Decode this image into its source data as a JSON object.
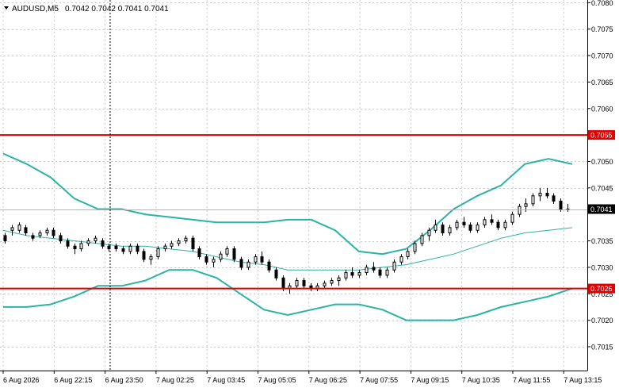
{
  "header": {
    "symbol": "AUDUSD,M5",
    "quotes": "0.7042 0.7042 0.7041 0.7041",
    "menu_icon": "triangle-down-icon"
  },
  "colors": {
    "background": "#ffffff",
    "grid": "#c8c8c8",
    "candle": "#000000",
    "bollinger": "#2ab3a6",
    "level_line": "#e00000",
    "level_tag_bg": "#e00000",
    "level_tag_text": "#ffffff",
    "price_tag_bg": "#000000",
    "price_tag_text": "#ffffff",
    "bid_line": "#b4b4b4",
    "axis": "#000000"
  },
  "chart_data": {
    "type": "candlestick",
    "symbol": "AUDUSD",
    "timeframe": "M5",
    "ylim": [
      0.70105,
      0.70805
    ],
    "y_ticks": [
      "0.7080",
      "0.7075",
      "0.7070",
      "0.7065",
      "0.7060",
      "0.7050",
      "0.7045",
      "0.7035",
      "0.7030",
      "0.7025",
      "0.7020",
      "0.7015"
    ],
    "y_tick_values": [
      0.708,
      0.7075,
      0.707,
      0.7065,
      0.706,
      0.705,
      0.7045,
      0.7035,
      0.703,
      0.7025,
      0.702,
      0.7015
    ],
    "x_ticks": [
      "6 Aug 2026",
      "6 Aug 22:15",
      "6 Aug 23:50",
      "7 Aug 02:25",
      "7 Aug 03:45",
      "7 Aug 05:05",
      "7 Aug 06:25",
      "7 Aug 07:55",
      "7 Aug 09:15",
      "7 Aug 10:35",
      "7 Aug 11:55",
      "7 Aug 13:15"
    ],
    "horizontal_levels": [
      {
        "label": "0.7055",
        "value": 0.7055
      },
      {
        "label": "0.7026",
        "value": 0.7026
      }
    ],
    "current_price": {
      "label": "0.7041",
      "value": 0.7041
    },
    "bollinger_bands": {
      "upper": [
        0.70515,
        0.70495,
        0.7047,
        0.7043,
        0.7041,
        0.7041,
        0.704,
        0.70395,
        0.7039,
        0.70385,
        0.70385,
        0.70385,
        0.7039,
        0.7039,
        0.7037,
        0.7033,
        0.70325,
        0.70335,
        0.7037,
        0.7041,
        0.70435,
        0.70455,
        0.70495,
        0.70505,
        0.70495
      ],
      "middle": [
        0.7037,
        0.7036,
        0.70355,
        0.7035,
        0.70345,
        0.7034,
        0.7034,
        0.70335,
        0.7033,
        0.7032,
        0.7031,
        0.70305,
        0.70295,
        0.70295,
        0.70295,
        0.70295,
        0.703,
        0.70305,
        0.70315,
        0.70325,
        0.7034,
        0.70355,
        0.70365,
        0.7037,
        0.70375
      ],
      "lower": [
        0.70225,
        0.70225,
        0.7023,
        0.70245,
        0.70265,
        0.70265,
        0.70275,
        0.70295,
        0.70295,
        0.7028,
        0.7025,
        0.7022,
        0.7021,
        0.7022,
        0.7023,
        0.7023,
        0.7022,
        0.702,
        0.702,
        0.702,
        0.7021,
        0.70225,
        0.70235,
        0.70245,
        0.7026
      ]
    },
    "candles": [
      [
        0.7036,
        0.70365,
        0.70345,
        0.7035
      ],
      [
        0.7037,
        0.7038,
        0.7036,
        0.70375
      ],
      [
        0.7037,
        0.70385,
        0.70365,
        0.7038
      ],
      [
        0.70375,
        0.7038,
        0.7036,
        0.70365
      ],
      [
        0.7036,
        0.70365,
        0.7035,
        0.70355
      ],
      [
        0.7036,
        0.7037,
        0.70355,
        0.70365
      ],
      [
        0.70365,
        0.70375,
        0.7036,
        0.7037
      ],
      [
        0.7037,
        0.70375,
        0.70355,
        0.7036
      ],
      [
        0.7036,
        0.70365,
        0.70345,
        0.7035
      ],
      [
        0.7035,
        0.70355,
        0.70335,
        0.7034
      ],
      [
        0.7034,
        0.70345,
        0.70325,
        0.70335
      ],
      [
        0.70335,
        0.7035,
        0.7033,
        0.70345
      ],
      [
        0.70345,
        0.70355,
        0.7034,
        0.7035
      ],
      [
        0.7035,
        0.7036,
        0.70345,
        0.70355
      ],
      [
        0.7035,
        0.70355,
        0.70335,
        0.7034
      ],
      [
        0.7034,
        0.70345,
        0.7033,
        0.70335
      ],
      [
        0.7034,
        0.70345,
        0.7033,
        0.70335
      ],
      [
        0.70335,
        0.7034,
        0.70325,
        0.7033
      ],
      [
        0.7033,
        0.70345,
        0.70325,
        0.7034
      ],
      [
        0.7034,
        0.70345,
        0.70325,
        0.7033
      ],
      [
        0.7033,
        0.70335,
        0.7031,
        0.70315
      ],
      [
        0.70315,
        0.70325,
        0.70305,
        0.7032
      ],
      [
        0.7032,
        0.7034,
        0.70315,
        0.70335
      ],
      [
        0.70335,
        0.70345,
        0.7033,
        0.7034
      ],
      [
        0.7034,
        0.7035,
        0.70335,
        0.70345
      ],
      [
        0.70345,
        0.70355,
        0.7034,
        0.7035
      ],
      [
        0.7035,
        0.7036,
        0.70345,
        0.70355
      ],
      [
        0.70355,
        0.7036,
        0.7033,
        0.70335
      ],
      [
        0.70335,
        0.7034,
        0.70315,
        0.7032
      ],
      [
        0.7032,
        0.70325,
        0.70305,
        0.7031
      ],
      [
        0.7031,
        0.7032,
        0.703,
        0.70315
      ],
      [
        0.70315,
        0.7033,
        0.7031,
        0.70325
      ],
      [
        0.70325,
        0.7034,
        0.7032,
        0.70335
      ],
      [
        0.70335,
        0.7034,
        0.7031,
        0.70315
      ],
      [
        0.70315,
        0.7032,
        0.70295,
        0.703
      ],
      [
        0.703,
        0.70315,
        0.70295,
        0.7031
      ],
      [
        0.7031,
        0.70325,
        0.70305,
        0.7032
      ],
      [
        0.7032,
        0.7033,
        0.70305,
        0.7031
      ],
      [
        0.7031,
        0.70315,
        0.7029,
        0.70295
      ],
      [
        0.70295,
        0.703,
        0.70275,
        0.7028
      ],
      [
        0.7028,
        0.70285,
        0.70255,
        0.7026
      ],
      [
        0.7026,
        0.7027,
        0.7025,
        0.70265
      ],
      [
        0.70265,
        0.7028,
        0.7026,
        0.70275
      ],
      [
        0.70275,
        0.7028,
        0.7026,
        0.70265
      ],
      [
        0.70265,
        0.7027,
        0.70255,
        0.7026
      ],
      [
        0.7026,
        0.7027,
        0.70255,
        0.70265
      ],
      [
        0.70265,
        0.70275,
        0.7026,
        0.7027
      ],
      [
        0.7027,
        0.7028,
        0.70265,
        0.70275
      ],
      [
        0.70275,
        0.70285,
        0.70265,
        0.7028
      ],
      [
        0.7028,
        0.70295,
        0.70275,
        0.7029
      ],
      [
        0.7029,
        0.703,
        0.7028,
        0.70285
      ],
      [
        0.70285,
        0.70295,
        0.7028,
        0.7029
      ],
      [
        0.7029,
        0.70305,
        0.70285,
        0.703
      ],
      [
        0.703,
        0.7031,
        0.7029,
        0.70295
      ],
      [
        0.70295,
        0.703,
        0.7028,
        0.70285
      ],
      [
        0.70285,
        0.703,
        0.7028,
        0.70295
      ],
      [
        0.70295,
        0.70315,
        0.7029,
        0.7031
      ],
      [
        0.7031,
        0.70325,
        0.70305,
        0.7032
      ],
      [
        0.7032,
        0.70335,
        0.70315,
        0.7033
      ],
      [
        0.7033,
        0.7035,
        0.70325,
        0.70345
      ],
      [
        0.70345,
        0.70365,
        0.7034,
        0.7036
      ],
      [
        0.7036,
        0.70375,
        0.7035,
        0.7037
      ],
      [
        0.7037,
        0.7039,
        0.70365,
        0.7038
      ],
      [
        0.7038,
        0.70385,
        0.7036,
        0.70365
      ],
      [
        0.70365,
        0.7038,
        0.7036,
        0.70375
      ],
      [
        0.70375,
        0.7039,
        0.7037,
        0.70385
      ],
      [
        0.70385,
        0.70395,
        0.70375,
        0.7038
      ],
      [
        0.7038,
        0.70385,
        0.70365,
        0.7037
      ],
      [
        0.7037,
        0.70385,
        0.70365,
        0.7038
      ],
      [
        0.7038,
        0.70395,
        0.70375,
        0.7039
      ],
      [
        0.7039,
        0.704,
        0.7038,
        0.70385
      ],
      [
        0.70385,
        0.7039,
        0.7037,
        0.70375
      ],
      [
        0.70375,
        0.7039,
        0.7037,
        0.70385
      ],
      [
        0.70385,
        0.70405,
        0.7038,
        0.704
      ],
      [
        0.704,
        0.7042,
        0.70395,
        0.70415
      ],
      [
        0.70415,
        0.7043,
        0.70405,
        0.7042
      ],
      [
        0.7042,
        0.7044,
        0.70415,
        0.70435
      ],
      [
        0.70435,
        0.7045,
        0.70425,
        0.7044
      ],
      [
        0.7044,
        0.7045,
        0.7043,
        0.70435
      ],
      [
        0.70435,
        0.7044,
        0.7042,
        0.70425
      ],
      [
        0.70425,
        0.7043,
        0.70405,
        0.7041
      ],
      [
        0.7041,
        0.7042,
        0.70405,
        0.7041
      ]
    ]
  }
}
